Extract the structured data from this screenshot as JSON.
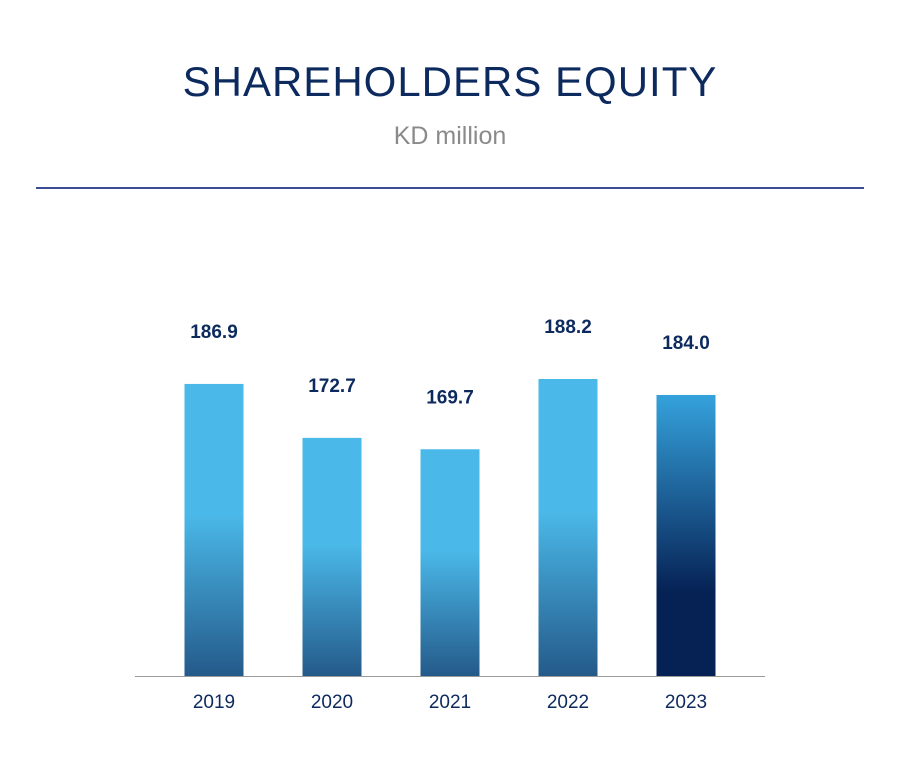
{
  "chart_data": {
    "type": "bar",
    "title": "SHAREHOLDERS EQUITY",
    "subtitle": "KD million",
    "categories": [
      "2019",
      "2020",
      "2021",
      "2022",
      "2023"
    ],
    "values": [
      186.9,
      172.7,
      169.7,
      188.2,
      184.0
    ],
    "value_labels": [
      "186.9",
      "172.7",
      "169.7",
      "188.2",
      "184.0"
    ],
    "colors": {
      "standard_top": "#4ab8e8",
      "standard_bottom": "#245a8a",
      "highlight_top": "#35a2dc",
      "highlight_bottom": "#062255",
      "text": "#0d2a5e",
      "axis": "#9a9a9a"
    },
    "highlight_index": 4,
    "grid": false,
    "legend": "none"
  }
}
